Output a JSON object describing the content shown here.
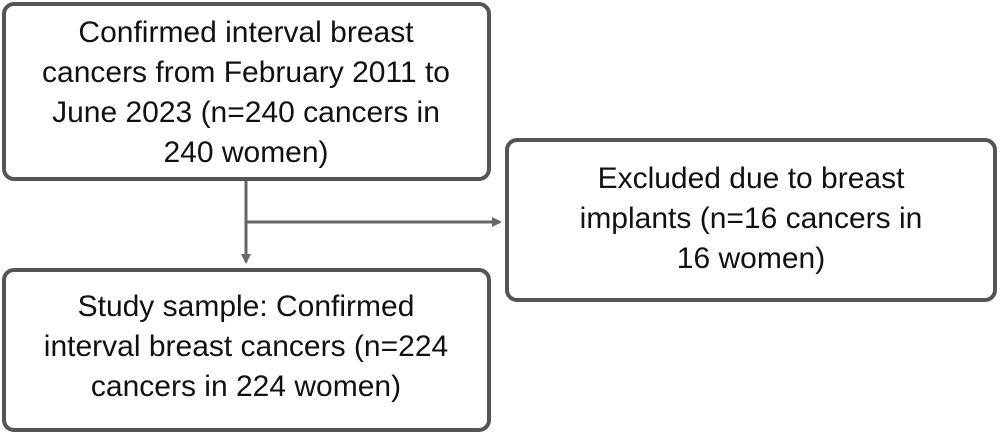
{
  "nodes": [
    {
      "lines": [
        "Confirmed interval breast",
        "cancers from February 2011 to",
        "June 2023 (n=240 cancers in",
        "240 women)"
      ]
    },
    {
      "lines": [
        "Excluded due to breast",
        "implants (n=16 cancers in",
        "16 women)"
      ]
    },
    {
      "lines": [
        "Study sample: Confirmed",
        "interval breast cancers (n=224",
        "cancers in 224 women)"
      ]
    }
  ]
}
